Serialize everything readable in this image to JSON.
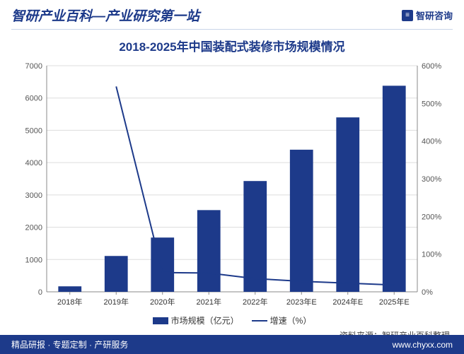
{
  "header": {
    "left": "智研产业百科—产业研究第一站",
    "right_brand": "智研咨询"
  },
  "chart": {
    "title": "2018-2025年中国装配式装修市场规模情况",
    "type": "combo-bar-line",
    "categories": [
      "2018年",
      "2019年",
      "2020年",
      "2021年",
      "2022年",
      "2023年E",
      "2024年E",
      "2025年E"
    ],
    "bar_series": {
      "name": "市场规模（亿元）",
      "values": [
        170,
        1110,
        1680,
        2530,
        3430,
        4400,
        5400,
        6380
      ],
      "color": "#1d3a8a"
    },
    "line_series": {
      "name": "增速（%）",
      "values": [
        null,
        545,
        51,
        50,
        35,
        28,
        23,
        18
      ],
      "color": "#1d3a8a",
      "line_width": 2
    },
    "y_left": {
      "min": 0,
      "max": 7000,
      "step": 1000
    },
    "y_right": {
      "min": 0,
      "max": 600,
      "step": 100,
      "suffix": "%"
    },
    "grid_color": "#dddddd",
    "axis_color": "#888888",
    "background_color": "#ffffff",
    "bar_width_ratio": 0.5,
    "label_fontsize": 11,
    "title_fontsize": 17,
    "title_color": "#1d3a8a"
  },
  "legend": {
    "bar_label": "市场规模（亿元）",
    "line_label": "增速（%）"
  },
  "source": "资料来源：智研产业百科整理",
  "footer": {
    "left": "精品研报 · 专题定制 · 产研服务",
    "right": "www.chyxx.com"
  }
}
